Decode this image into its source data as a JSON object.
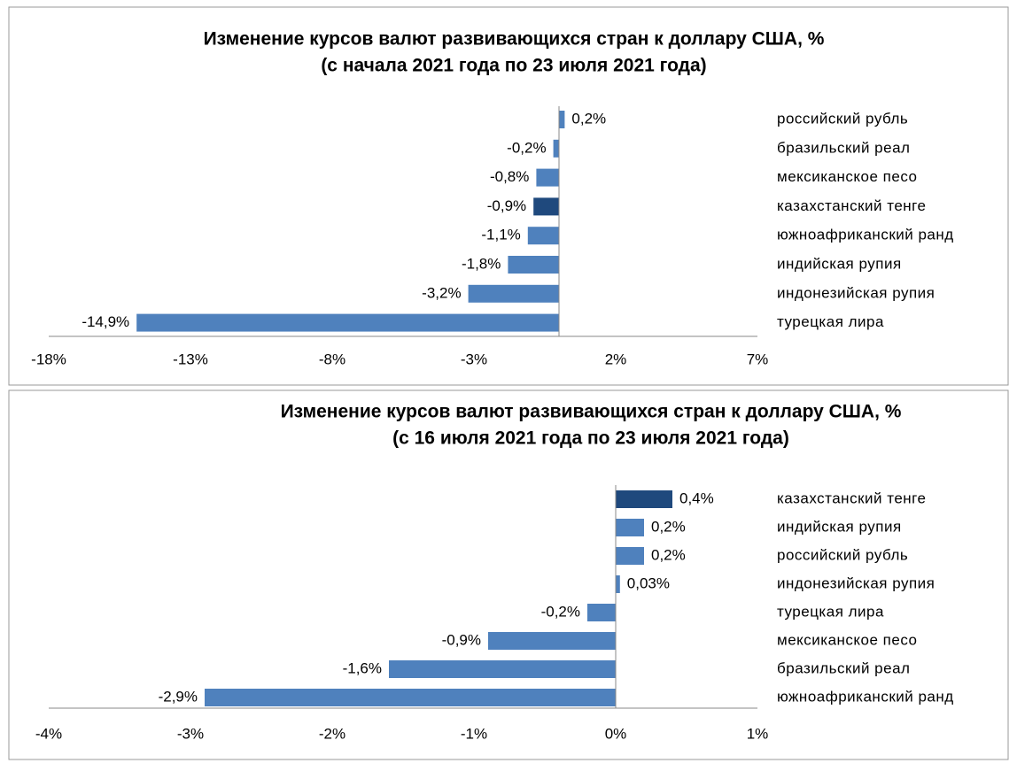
{
  "chart_data": [
    {
      "type": "bar",
      "orientation": "horizontal",
      "title": [
        "Изменение курсов валют развивающихся стран к доллару США, %",
        "(с начала 2021 года по 23 июля 2021 года)"
      ],
      "categories": [
        "российский рубль",
        "бразильский реал",
        "мексиканское песо",
        "казахстанский тенге",
        "южноафриканский ранд",
        "индийская рупия",
        "индонезийская рупия",
        "турецкая лира"
      ],
      "values": [
        0.2,
        -0.2,
        -0.8,
        -0.9,
        -1.1,
        -1.8,
        -3.2,
        -14.9
      ],
      "value_labels": [
        "0,2%",
        "-0,2%",
        "-0,8%",
        "-0,9%",
        "-1,1%",
        "-1,8%",
        "-3,2%",
        "-14,9%"
      ],
      "colors": [
        "#4f81bd",
        "#4f81bd",
        "#4f81bd",
        "#1f497d",
        "#4f81bd",
        "#4f81bd",
        "#4f81bd",
        "#4f81bd"
      ],
      "xlim": [
        -18,
        7
      ],
      "xticks": [
        {
          "value": -18,
          "label": "-18%"
        },
        {
          "value": -13,
          "label": "-13%"
        },
        {
          "value": -8,
          "label": "-8%"
        },
        {
          "value": -3,
          "label": "-3%"
        },
        {
          "value": 2,
          "label": "2%"
        },
        {
          "value": 7,
          "label": "7%"
        }
      ]
    },
    {
      "type": "bar",
      "orientation": "horizontal",
      "title": [
        "Изменение курсов валют развивающихся стран к доллару США, %",
        "(с 16 июля 2021 года по 23 июля 2021 года)"
      ],
      "categories": [
        "казахстанский тенге",
        "индийская рупия",
        "российский рубль",
        "индонезийская рупия",
        "турецкая лира",
        "мексиканское песо",
        "бразильский реал",
        "южноафриканский ранд"
      ],
      "values": [
        0.4,
        0.2,
        0.2,
        0.03,
        -0.2,
        -0.9,
        -1.6,
        -2.9
      ],
      "value_labels": [
        "0,4%",
        "0,2%",
        "0,2%",
        "0,03%",
        "-0,2%",
        "-0,9%",
        "-1,6%",
        "-2,9%"
      ],
      "colors": [
        "#1f497d",
        "#4f81bd",
        "#4f81bd",
        "#4f81bd",
        "#4f81bd",
        "#4f81bd",
        "#4f81bd",
        "#4f81bd"
      ],
      "xlim": [
        -4,
        1
      ],
      "xticks": [
        {
          "value": -4,
          "label": "-4%"
        },
        {
          "value": -3,
          "label": "-3%"
        },
        {
          "value": -2,
          "label": "-2%"
        },
        {
          "value": -1,
          "label": "-1%"
        },
        {
          "value": 0,
          "label": "0%"
        },
        {
          "value": 1,
          "label": "1%"
        }
      ]
    }
  ]
}
